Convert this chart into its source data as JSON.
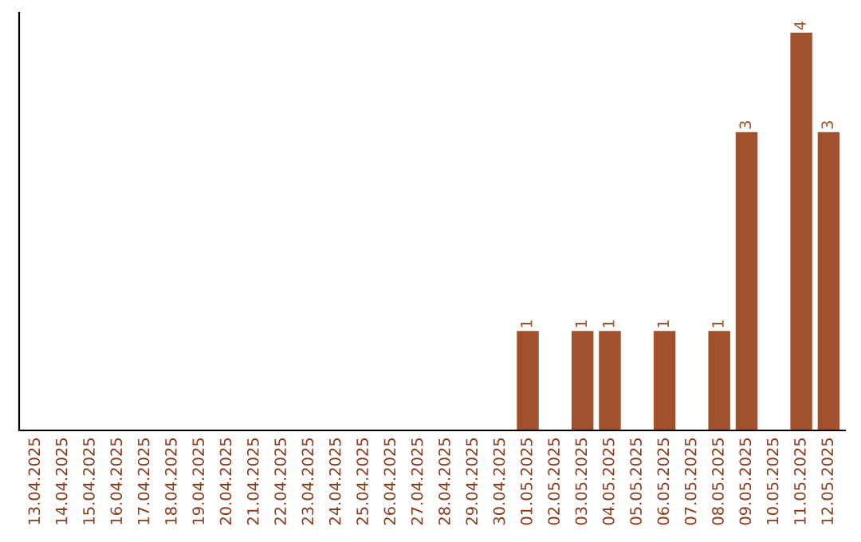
{
  "chart_data": {
    "type": "bar",
    "categories": [
      "13.04.2025",
      "14.04.2025",
      "15.04.2025",
      "16.04.2025",
      "17.04.2025",
      "18.04.2025",
      "19.04.2025",
      "20.04.2025",
      "21.04.2025",
      "22.04.2025",
      "23.04.2025",
      "24.04.2025",
      "25.04.2025",
      "26.04.2025",
      "27.04.2025",
      "28.04.2025",
      "29.04.2025",
      "30.04.2025",
      "01.05.2025",
      "02.05.2025",
      "03.05.2025",
      "04.05.2025",
      "05.05.2025",
      "06.05.2025",
      "07.05.2025",
      "08.05.2025",
      "09.05.2025",
      "10.05.2025",
      "11.05.2025",
      "12.05.2025"
    ],
    "values": [
      null,
      null,
      null,
      null,
      null,
      null,
      null,
      null,
      null,
      null,
      null,
      null,
      null,
      null,
      null,
      null,
      null,
      null,
      1,
      null,
      1,
      1,
      null,
      1,
      null,
      1,
      3,
      null,
      4,
      3
    ],
    "data_labels": true,
    "color": "#a0522d",
    "tick_labels": "x",
    "grid": false,
    "legend": false
  }
}
